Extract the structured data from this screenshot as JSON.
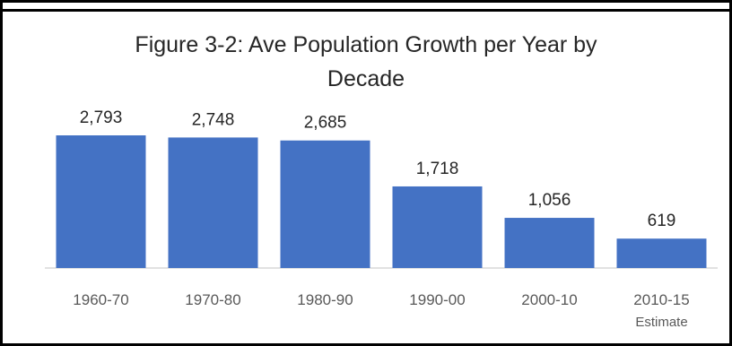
{
  "chart_data": {
    "type": "bar",
    "title_lines": [
      "Figure 3-2:  Ave Population Growth per Year by",
      "Decade"
    ],
    "categories": [
      "1960-70",
      "1970-80",
      "1980-90",
      "1990-00",
      "2000-10",
      "2010-15"
    ],
    "category_sublabels": [
      "",
      "",
      "",
      "",
      "",
      "Estimate"
    ],
    "values": [
      2793,
      2748,
      2685,
      1718,
      1056,
      619
    ],
    "data_labels": [
      "2,793",
      "2,748",
      "2,685",
      "1,718",
      "1,056",
      "619"
    ],
    "xlabel": "",
    "ylabel": "",
    "ylim": [
      0,
      2793
    ],
    "grid": false,
    "legend": "none",
    "colors": {
      "bar": "#4472c4",
      "axis": "#d9d9d9",
      "text": "#262626",
      "category_text": "#595959"
    }
  }
}
